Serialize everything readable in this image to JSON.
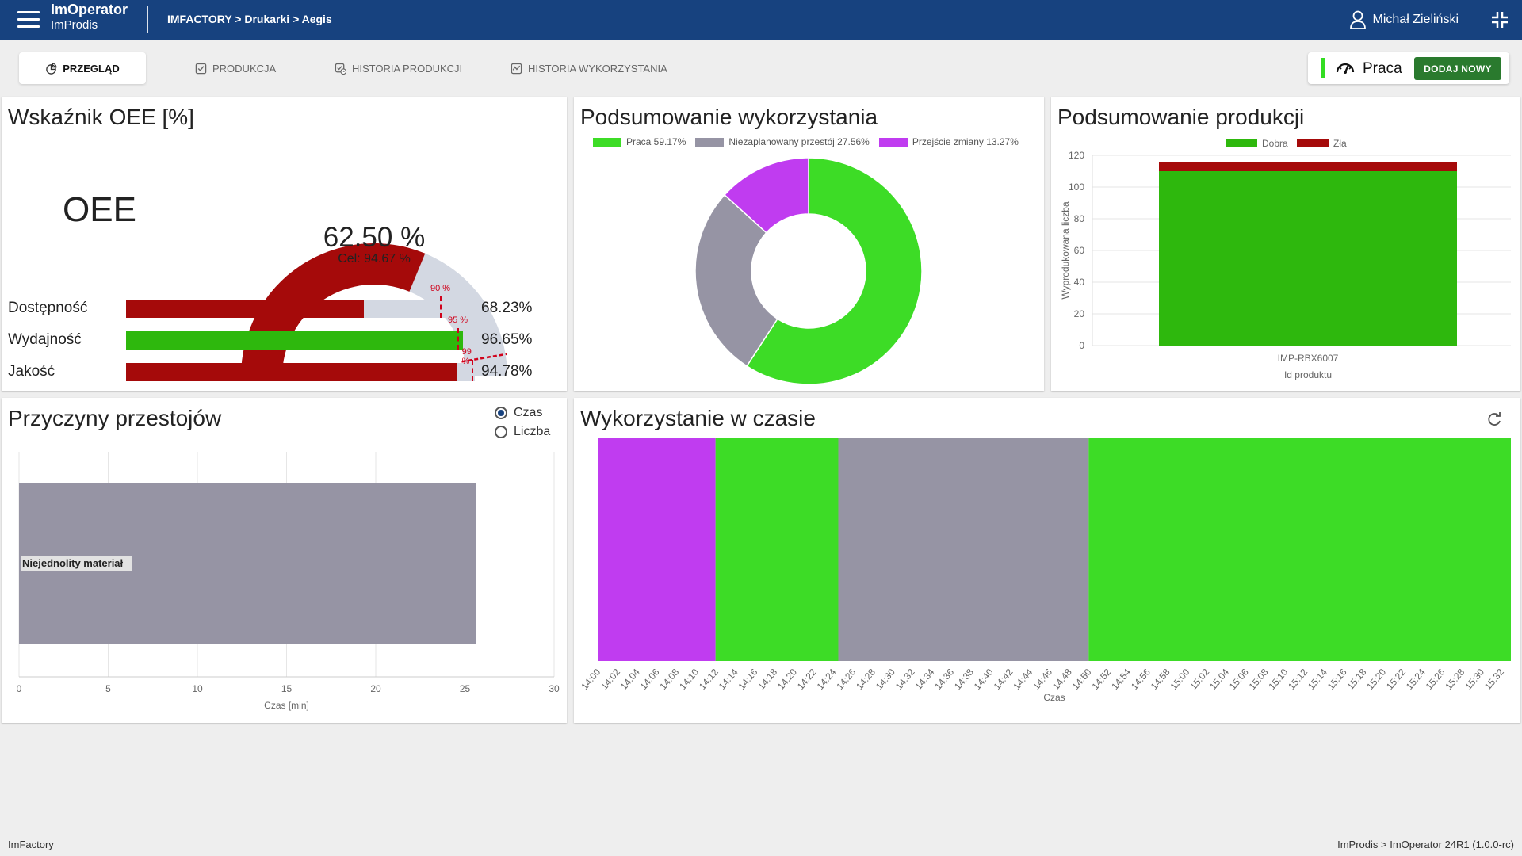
{
  "app": {
    "title": "ImOperator",
    "subtitle": "ImProdis"
  },
  "breadcrumb": "IMFACTORY > Drukarki > Aegis",
  "user": {
    "name": "Michał Zieliński"
  },
  "tabs": [
    {
      "label": "PRZEGLĄD",
      "icon": "chart-pie-icon",
      "active": true
    },
    {
      "label": "PRODUKCJA",
      "icon": "checkbox-icon",
      "active": false
    },
    {
      "label": "HISTORIA PRODUKCJI",
      "icon": "history-check-icon",
      "active": false
    },
    {
      "label": "HISTORIA WYKORZYSTANIA",
      "icon": "activity-chart-icon",
      "active": false
    }
  ],
  "machine_state": {
    "label": "Praca",
    "color": "#33dd22",
    "button": "DODAJ NOWY"
  },
  "oee": {
    "title": "Wskaźnik OEE [%]",
    "big_label": "OEE",
    "value_text": "62.50 %",
    "value": 62.5,
    "target_text": "Cel: 94.67 %",
    "target": 94.67,
    "metrics": [
      {
        "label": "Dostępność",
        "value": 68.23,
        "value_text": "68.23%",
        "target": 90,
        "target_text": "90 %",
        "color": "#a50a0a"
      },
      {
        "label": "Wydajność",
        "value": 96.65,
        "value_text": "96.65%",
        "target": 95,
        "target_text": "95 %",
        "color": "#2eb80d"
      },
      {
        "label": "Jakość",
        "value": 94.78,
        "value_text": "94.78%",
        "target": 99,
        "target_text": "99 %",
        "color": "#a50a0a"
      }
    ],
    "colors": {
      "fill": "#a50a0a",
      "track": "#d3d8e2",
      "target": "#d0021b"
    }
  },
  "utilization": {
    "title": "Podsumowanie wykorzystania",
    "chart_data": {
      "type": "pie",
      "labels": [
        "Praca",
        "Niezaplanowany przestój",
        "Przejście zmiany"
      ],
      "legend": [
        "Praca 59.17%",
        "Niezaplanowany przestój 27.56%",
        "Przejście zmiany 13.27%"
      ],
      "values": [
        59.17,
        27.56,
        13.27
      ],
      "colors": [
        "#3ddc26",
        "#9694a4",
        "#c03cf0"
      ]
    }
  },
  "production": {
    "title": "Podsumowanie produkcji",
    "chart_data": {
      "type": "bar",
      "categories": [
        "IMP-RBX6007"
      ],
      "series": [
        {
          "name": "Dobra",
          "values": [
            110
          ],
          "color": "#2eb80d"
        },
        {
          "name": "Zła",
          "values": [
            6
          ],
          "color": "#a50a0a"
        }
      ],
      "xlabel": "Id produktu",
      "ylabel": "Wyprodukowana liczba",
      "ylim": [
        0,
        120
      ],
      "yticks": [
        "0",
        "20",
        "40",
        "60",
        "80",
        "100",
        "120"
      ],
      "stacked": true
    }
  },
  "downtime": {
    "title": "Przyczyny przestojów",
    "radio": [
      {
        "label": "Czas",
        "checked": true
      },
      {
        "label": "Liczba",
        "checked": false
      }
    ],
    "chart_data": {
      "type": "bar",
      "orientation": "horizontal",
      "categories": [
        "Niejednolity materiał"
      ],
      "values": [
        25.6
      ],
      "color": "#9694a4",
      "xlabel": "Czas [min]",
      "xlim": [
        0,
        30
      ],
      "xticks": [
        "0",
        "5",
        "10",
        "15",
        "20",
        "25",
        "30"
      ]
    }
  },
  "timeline": {
    "title": "Wykorzystanie w czasie",
    "refresh_icon": "refresh-icon",
    "chart_data": {
      "type": "area",
      "xlabel": "Czas",
      "x_start": "14:00",
      "x_end": "15:33",
      "segments": [
        {
          "state": "Przejście zmiany",
          "start": "14:00",
          "end": "14:12",
          "color": "#c03cf0"
        },
        {
          "state": "Praca",
          "start": "14:12",
          "end": "14:24.5",
          "color": "#3ddc26"
        },
        {
          "state": "Niezaplanowany przestój",
          "start": "14:24.5",
          "end": "14:50",
          "color": "#9694a4"
        },
        {
          "state": "Praca",
          "start": "14:50",
          "end": "15:33",
          "color": "#3ddc26"
        }
      ],
      "ticks": [
        "14:00",
        "14:02",
        "14:04",
        "14:06",
        "14:08",
        "14:10",
        "14:12",
        "14:14",
        "14:16",
        "14:18",
        "14:20",
        "14:22",
        "14:24",
        "14:26",
        "14:28",
        "14:30",
        "14:32",
        "14:34",
        "14:36",
        "14:38",
        "14:40",
        "14:42",
        "14:44",
        "14:46",
        "14:48",
        "14:50",
        "14:52",
        "14:54",
        "14:56",
        "14:58",
        "15:00",
        "15:02",
        "15:04",
        "15:06",
        "15:08",
        "15:10",
        "15:12",
        "15:14",
        "15:16",
        "15:18",
        "15:20",
        "15:22",
        "15:24",
        "15:26",
        "15:28",
        "15:30",
        "15:32"
      ]
    }
  },
  "footer": {
    "left": "ImFactory",
    "right": "ImProdis > ImOperator 24R1 (1.0.0-rc)"
  }
}
